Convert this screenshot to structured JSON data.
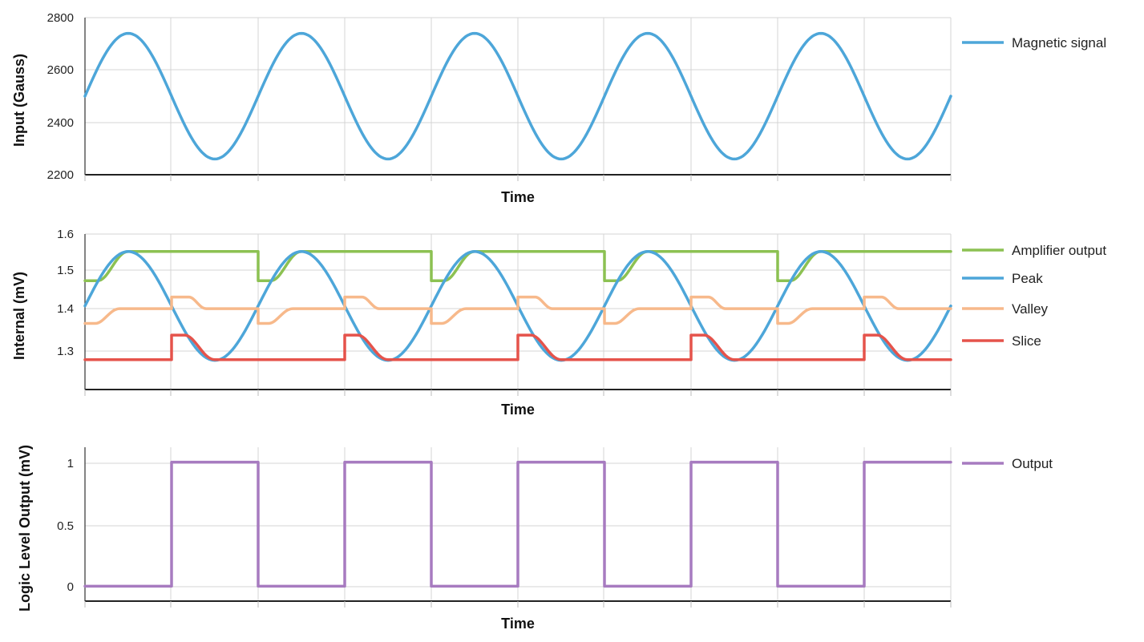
{
  "chart_data": [
    {
      "type": "line",
      "ylabel": "Input (Gauss)",
      "xlabel": "Time",
      "ylim": [
        2200,
        2800
      ],
      "yticks": [
        "2800",
        "2600",
        "2400",
        "2200"
      ],
      "grid": true,
      "legend_position": "right",
      "series": [
        {
          "name": "Magnetic signal",
          "color": "#4da6d9",
          "x": [
            0,
            0.5,
            1,
            1.5,
            2,
            2.5,
            3,
            3.5,
            4,
            4.5,
            5,
            5.5,
            6,
            6.5,
            7,
            7.5,
            8,
            8.5,
            9,
            9.5,
            10
          ],
          "values": [
            2500,
            2740,
            2500,
            2260,
            2500,
            2740,
            2500,
            2260,
            2500,
            2740,
            2500,
            2260,
            2500,
            2740,
            2500,
            2260,
            2500,
            2740,
            2500,
            2260,
            2500
          ]
        }
      ]
    },
    {
      "type": "line",
      "ylabel": "Internal (mV)",
      "xlabel": "Time",
      "ylim": [
        1.2,
        1.6
      ],
      "yticks": [
        "1.6",
        "1.5",
        "1.4",
        "1.3"
      ],
      "grid": true,
      "legend_position": "right",
      "series": [
        {
          "name": "Amplifier output",
          "color": "#8cc152",
          "x": [
            0,
            0.15,
            0.5,
            2,
            2,
            2.15,
            2.5,
            4,
            4,
            4.15,
            4.5,
            6,
            6,
            6.15,
            6.5,
            8,
            8,
            8.15,
            8.5,
            10
          ],
          "values": [
            1.48,
            1.48,
            1.555,
            1.555,
            1.48,
            1.48,
            1.555,
            1.555,
            1.48,
            1.48,
            1.555,
            1.555,
            1.48,
            1.48,
            1.555,
            1.555,
            1.48,
            1.48,
            1.555,
            1.555
          ]
        },
        {
          "name": "Peak",
          "color": "#4da6d9",
          "x": [
            0,
            0.5,
            1,
            1.5,
            2,
            2.5,
            3,
            3.5,
            4,
            4.5,
            5,
            5.5,
            6,
            6.5,
            7,
            7.5,
            8,
            8.5,
            9,
            9.5,
            10
          ],
          "values": [
            1.415,
            1.555,
            1.415,
            1.275,
            1.415,
            1.555,
            1.415,
            1.275,
            1.415,
            1.555,
            1.415,
            1.275,
            1.415,
            1.555,
            1.415,
            1.275,
            1.415,
            1.555,
            1.415,
            1.275,
            1.415
          ]
        },
        {
          "name": "Valley",
          "color": "#f7b98b",
          "x": [
            0,
            0.12,
            0.4,
            1,
            1,
            1.2,
            1.4,
            2,
            2,
            2.12,
            2.4,
            3,
            3,
            3.2,
            3.4,
            4,
            4,
            4.12,
            4.4,
            5,
            5,
            5.2,
            5.4,
            6,
            6,
            6.12,
            6.4,
            7,
            7,
            7.2,
            7.4,
            8,
            8,
            8.12,
            8.4,
            9,
            9,
            9.2,
            9.4,
            10
          ],
          "values": [
            1.37,
            1.37,
            1.408,
            1.408,
            1.438,
            1.438,
            1.408,
            1.408,
            1.37,
            1.37,
            1.408,
            1.408,
            1.438,
            1.438,
            1.408,
            1.408,
            1.37,
            1.37,
            1.408,
            1.408,
            1.438,
            1.438,
            1.408,
            1.408,
            1.37,
            1.37,
            1.408,
            1.408,
            1.438,
            1.438,
            1.408,
            1.408,
            1.37,
            1.37,
            1.408,
            1.408,
            1.438,
            1.438,
            1.408,
            1.408
          ]
        },
        {
          "name": "Slice",
          "color": "#e5534b",
          "x": [
            0,
            1,
            1,
            1.15,
            1.5,
            3,
            3,
            3.15,
            3.5,
            5,
            5,
            5.15,
            5.5,
            7,
            7,
            7.15,
            7.5,
            9,
            9,
            9.15,
            9.5,
            10
          ],
          "values": [
            1.277,
            1.277,
            1.34,
            1.34,
            1.277,
            1.277,
            1.34,
            1.34,
            1.277,
            1.277,
            1.34,
            1.34,
            1.277,
            1.277,
            1.34,
            1.34,
            1.277,
            1.277,
            1.34,
            1.34,
            1.277,
            1.277
          ]
        }
      ]
    },
    {
      "type": "line",
      "ylabel": "Logic Level Output (mV)",
      "xlabel": "Time",
      "ylim": [
        -0.12,
        1.12
      ],
      "yticks": [
        "1",
        "0.5",
        "0"
      ],
      "grid": true,
      "legend_position": "right",
      "series": [
        {
          "name": "Output",
          "color": "#a77bc0",
          "x": [
            0,
            1,
            1,
            2,
            2,
            3,
            3,
            4,
            4,
            5,
            5,
            6,
            6,
            7,
            7,
            8,
            8,
            9,
            9,
            10
          ],
          "values": [
            0,
            0,
            1,
            1,
            0,
            0,
            1,
            1,
            0,
            0,
            1,
            1,
            0,
            0,
            1,
            1,
            0,
            0,
            1,
            1
          ]
        }
      ]
    }
  ]
}
